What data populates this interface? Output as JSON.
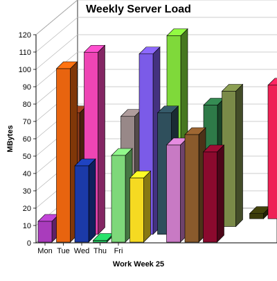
{
  "chart_data": {
    "type": "bar",
    "title": "Weekly Server Load",
    "xlabel": "Work Week 25",
    "ylabel": "MBytes",
    "categories": [
      "Mon",
      "Tue",
      "Wed",
      "Thu",
      "Fri"
    ],
    "yticks": [
      0,
      10,
      20,
      30,
      40,
      50,
      60,
      70,
      80,
      90,
      100,
      110,
      120
    ],
    "ylim": [
      0,
      120
    ],
    "grid": true,
    "legend": "none",
    "depth_rows": 4,
    "bars": [
      {
        "category": "Mon",
        "row": 0,
        "value": 12,
        "color": "#a93cbc"
      },
      {
        "category": "Tue",
        "row": 0,
        "value": 100,
        "color": "#e8640f"
      },
      {
        "category": "Wed",
        "row": 0,
        "value": 44,
        "color": "#1b3aa8"
      },
      {
        "category": "Thu",
        "row": 0,
        "value": 1,
        "color": "#22c55e"
      },
      {
        "category": "Fri",
        "row": 0,
        "value": 50,
        "color": "#7ed87a"
      },
      {
        "category": "Mon",
        "row": 0,
        "value": 37,
        "color": "#f5da22",
        "slot": 5
      },
      {
        "category": "Mon",
        "row": 0,
        "value": 56,
        "color": "#c87ac4",
        "slot": 7
      },
      {
        "category": "Mon",
        "row": 0,
        "value": 62,
        "color": "#8a5a2c",
        "slot": 8
      },
      {
        "category": "Mon",
        "row": 0,
        "value": 52,
        "color": "#8b0a2e",
        "slot": 9
      },
      {
        "category": "Tue",
        "row": 1,
        "value": 70,
        "color": "#8b3a1a",
        "slot": 1
      },
      {
        "category": "Wed",
        "row": 1,
        "value": 105,
        "color": "#ee45b4",
        "slot": 2
      },
      {
        "category": "Thu",
        "row": 1,
        "value": 68,
        "color": "#988888",
        "slot": 4
      },
      {
        "category": "Fri",
        "row": 1,
        "value": 104,
        "color": "#7b5be8",
        "slot": 5
      },
      {
        "category": "Fri",
        "row": 1,
        "value": 70,
        "color": "#2f4f5c",
        "slot": 6
      },
      {
        "category": "Wed",
        "row": 2,
        "value": 35,
        "color": "#0a1fd6",
        "slot": 3
      },
      {
        "category": "Wed",
        "row": 2,
        "value": 110,
        "color": "#7fd93a",
        "slot": 6
      },
      {
        "category": "Wed",
        "row": 2,
        "value": 70,
        "color": "#2e7a48",
        "slot": 8
      },
      {
        "category": "Wed",
        "row": 2,
        "value": 78,
        "color": "#7a8a48",
        "slot": 9
      },
      {
        "category": "Wed",
        "row": 3,
        "value": 7,
        "color": "#1e90ff",
        "slot": 3
      },
      {
        "category": "Wed",
        "row": 3,
        "value": 3,
        "color": "#3a3a0a",
        "slot": 10
      },
      {
        "category": "Wed",
        "row": 3,
        "value": 77,
        "color": "#ee2255",
        "slot": 11
      }
    ]
  }
}
